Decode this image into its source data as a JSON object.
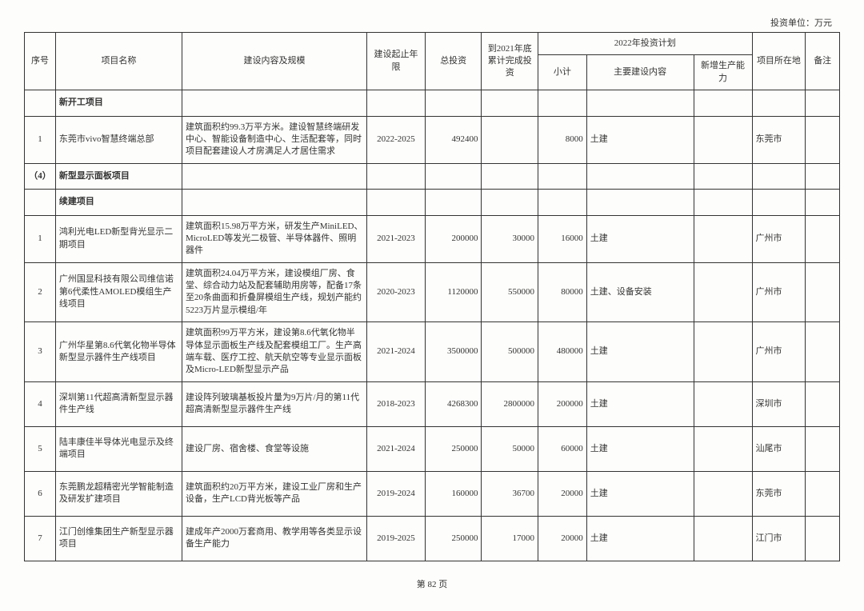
{
  "unit_label": "投资单位：万元",
  "headers": {
    "seq": "序号",
    "project_name": "项目名称",
    "content_scale": "建设内容及规模",
    "period": "建设起止年限",
    "total_inv": "总投资",
    "cum_2021": "到2021年底累计完成投资",
    "plan_2022": "2022年投资计划",
    "subtotal": "小计",
    "main_content": "主要建设内容",
    "new_capacity": "新增生产能力",
    "location": "项目所在地",
    "remark": "备注"
  },
  "sections": {
    "new_start": "新开工项目",
    "cat4": "新型显示面板项目",
    "continue": "续建项目"
  },
  "rows": [
    {
      "seq": "1",
      "name": "东莞市vivo智慧终端总部",
      "content": "建筑面积约99.3万平方米。建设智慧终端研发中心、智能设备制造中心、生活配套等，同时项目配套建设人才房满足人才居住需求",
      "period": "2022-2025",
      "total": "492400",
      "cum": "",
      "sub": "8000",
      "build": "土建",
      "cap": "",
      "loc": "东莞市",
      "note": ""
    },
    {
      "seq": "1",
      "name": "鸿利光电LED新型背光显示二期项目",
      "content": "建筑面积15.98万平方米，研发生产MiniLED、MicroLED等发光二极管、半导体器件、照明器件",
      "period": "2021-2023",
      "total": "200000",
      "cum": "30000",
      "sub": "16000",
      "build": "土建",
      "cap": "",
      "loc": "广州市",
      "note": ""
    },
    {
      "seq": "2",
      "name": "广州国显科技有限公司维信诺第6代柔性AMOLED模组生产线项目",
      "content": "建筑面积24.04万平方米，建设模组厂房、食堂、综合动力站及配套辅助用房等，配备17条至20条曲面和折叠屏模组生产线，规划产能约5223万片显示模组/年",
      "period": "2020-2023",
      "total": "1120000",
      "cum": "550000",
      "sub": "80000",
      "build": "土建、设备安装",
      "cap": "",
      "loc": "广州市",
      "note": ""
    },
    {
      "seq": "3",
      "name": "广州华星第8.6代氧化物半导体新型显示器件生产线项目",
      "content": "建筑面积99万平方米，建设第8.6代氧化物半导体显示面板生产线及配套模组工厂。生产高端车载、医疗工控、航天航空等专业显示面板及Micro-LED新型显示产品",
      "period": "2021-2024",
      "total": "3500000",
      "cum": "500000",
      "sub": "480000",
      "build": "土建",
      "cap": "",
      "loc": "广州市",
      "note": ""
    },
    {
      "seq": "4",
      "name": "深圳第11代超高清新型显示器件生产线",
      "content": "建设阵列玻璃基板投片量为9万片/月的第11代超高清新型显示器件生产线",
      "period": "2018-2023",
      "total": "4268300",
      "cum": "2800000",
      "sub": "200000",
      "build": "土建",
      "cap": "",
      "loc": "深圳市",
      "note": ""
    },
    {
      "seq": "5",
      "name": "陆丰康佳半导体光电显示及终端项目",
      "content": "建设厂房、宿舍楼、食堂等设施",
      "period": "2021-2024",
      "total": "250000",
      "cum": "50000",
      "sub": "60000",
      "build": "土建",
      "cap": "",
      "loc": "汕尾市",
      "note": ""
    },
    {
      "seq": "6",
      "name": "东莞鹏龙超精密光学智能制造及研发扩建项目",
      "content": "建筑面积约20万平方米，建设工业厂房和生产设备，生产LCD背光板等产品",
      "period": "2019-2024",
      "total": "160000",
      "cum": "36700",
      "sub": "20000",
      "build": "土建",
      "cap": "",
      "loc": "东莞市",
      "note": ""
    },
    {
      "seq": "7",
      "name": "江门创维集团生产新型显示器项目",
      "content": "建成年产2000万套商用、教学用等各类显示设备生产能力",
      "period": "2019-2025",
      "total": "250000",
      "cum": "17000",
      "sub": "20000",
      "build": "土建",
      "cap": "",
      "loc": "江门市",
      "note": ""
    }
  ],
  "cat4_prefix": "（4）",
  "page_number": "第 82 页"
}
